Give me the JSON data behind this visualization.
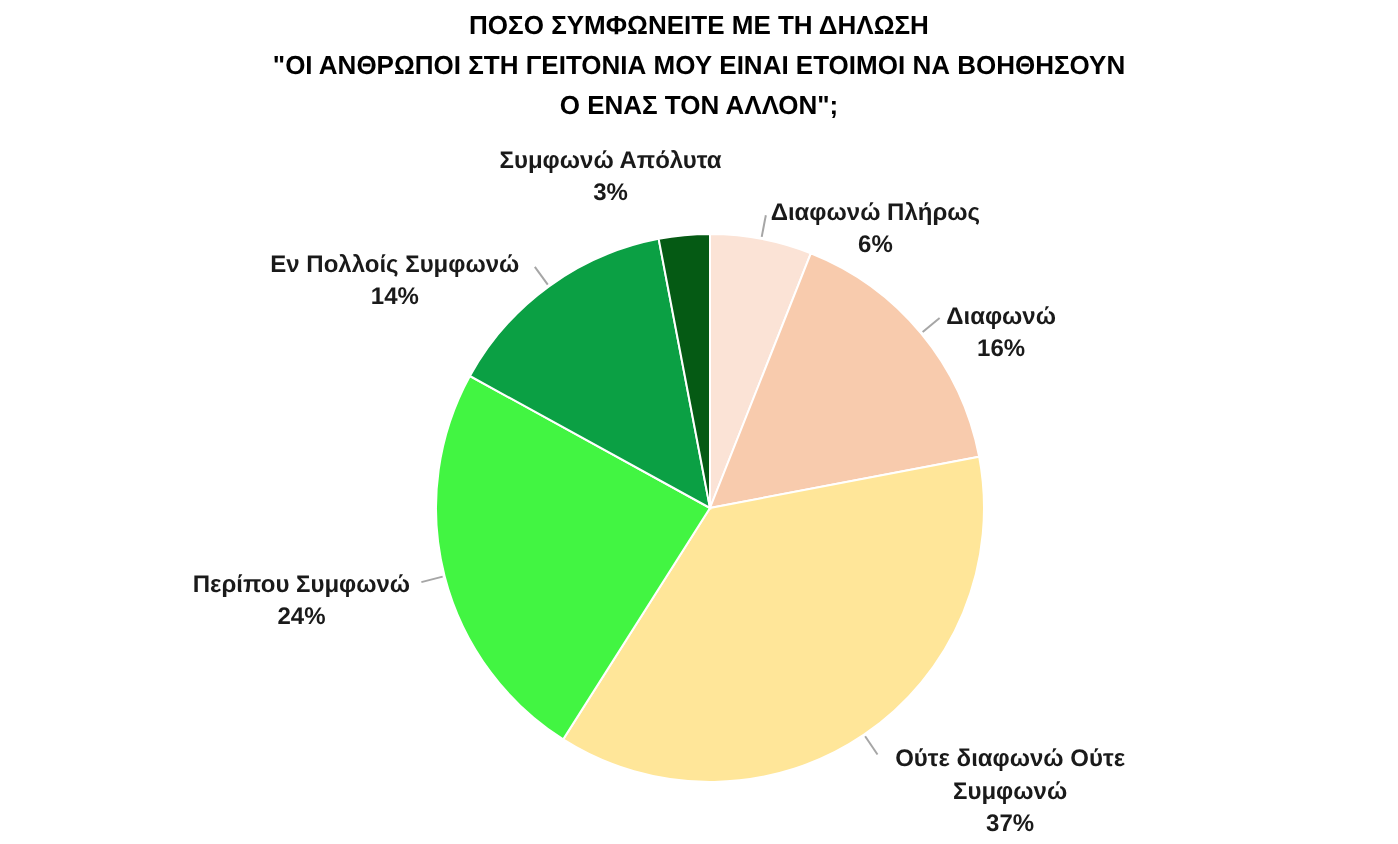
{
  "chart_data": {
    "type": "pie",
    "title": "ΠΟΣΟ ΣΥΜΦΩΝΕΙΤΕ ΜΕ ΤΗ ΔΗΛΩΣΗ\n\"ΟΙ ΑΝΘΡΩΠΟΙ ΣΤΗ ΓΕΙΤΟΝΙΑ ΜΟΥ ΕΙΝΑΙ ΕΤΟΙΜΟΙ ΝΑ ΒΟΗΘΗΣΟΥΝ\nΟ ΕΝΑΣ ΤΟΝ ΑΛΛΟΝ\";",
    "categories": [
      "Διαφωνώ Πλήρως",
      "Διαφωνώ",
      "Ούτε διαφωνώ Ούτε Συμφωνώ",
      "Περίπου Συμφωνώ",
      "Εν Πολλοίς Συμφωνώ",
      "Συμφωνώ Απόλυτα"
    ],
    "values": [
      6,
      16,
      37,
      24,
      14,
      3
    ],
    "value_labels": [
      "6%",
      "16%",
      "37%",
      "24%",
      "14%",
      "3%"
    ],
    "colors": [
      "#fbe3d6",
      "#f8cbad",
      "#ffe699",
      "#42f542",
      "#0ba044",
      "#055a14"
    ]
  }
}
